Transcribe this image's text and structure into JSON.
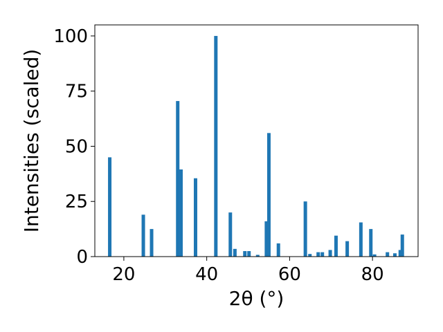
{
  "chart_data": {
    "type": "bar",
    "title": "",
    "xlabel": "2θ (°)",
    "ylabel": "Intensities (scaled)",
    "xlim": [
      13,
      91
    ],
    "ylim": [
      0,
      105
    ],
    "xticks": [
      20,
      40,
      60,
      80
    ],
    "yticks": [
      0,
      25,
      50,
      75,
      100
    ],
    "bar_color": "#1f77b4",
    "grid": false,
    "x": [
      16.6,
      24.7,
      26.7,
      33.0,
      33.8,
      37.3,
      42.2,
      45.7,
      46.8,
      49.2,
      50.2,
      52.3,
      54.4,
      55.0,
      57.3,
      63.8,
      64.9,
      66.9,
      67.9,
      69.8,
      71.2,
      73.9,
      77.2,
      79.6,
      80.5,
      83.6,
      85.4,
      86.7,
      87.2
    ],
    "values": [
      45,
      19,
      12.5,
      70.5,
      39.5,
      35.5,
      100,
      20,
      3.5,
      2.5,
      2.5,
      0.8,
      16,
      56,
      6,
      25,
      1.2,
      2,
      2,
      3,
      9.5,
      7,
      15.5,
      12.5,
      1,
      2,
      1.5,
      3,
      10
    ]
  }
}
